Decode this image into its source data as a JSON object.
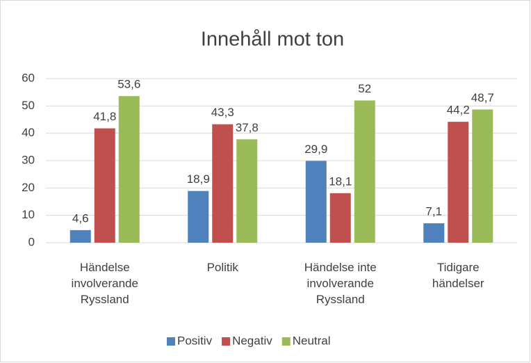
{
  "chart_data": {
    "type": "bar",
    "title": "Innehåll mot ton",
    "categories": [
      "Händelse\ninvolverande\nRyssland",
      "Politik",
      "Händelse inte\ninvolverande\nRyssland",
      "Tidigare\nhändelser"
    ],
    "series": [
      {
        "name": "Positiv",
        "color": "#4f81bd",
        "values": [
          4.6,
          18.9,
          29.9,
          7.1
        ],
        "value_labels": [
          "4,6",
          "18,9",
          "29,9",
          "7,1"
        ]
      },
      {
        "name": "Negativ",
        "color": "#c0504d",
        "values": [
          41.8,
          43.3,
          18.1,
          44.2
        ],
        "value_labels": [
          "41,8",
          "43,3",
          "18,1",
          "44,2"
        ]
      },
      {
        "name": "Neutral",
        "color": "#9bbb59",
        "values": [
          53.6,
          37.8,
          52,
          48.7
        ],
        "value_labels": [
          "53,6",
          "37,8",
          "52",
          "48,7"
        ]
      }
    ],
    "ylim": [
      0,
      60
    ],
    "yticks": [
      0,
      10,
      20,
      30,
      40,
      50,
      60
    ],
    "grid": true,
    "legend": "bottom"
  }
}
